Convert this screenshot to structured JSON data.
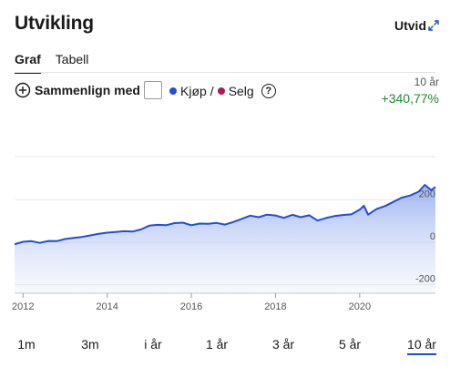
{
  "header": {
    "title": "Utvikling",
    "expand_label": "Utvid"
  },
  "tabs": [
    {
      "label": "Graf",
      "active": true
    },
    {
      "label": "Tabell",
      "active": false
    }
  ],
  "controls": {
    "compare_label": "Sammenlign med",
    "buy_label": "Kjøp",
    "separator": "/",
    "sell_label": "Selg",
    "help_label": "?",
    "buy_color": "#1f4fd6",
    "sell_color": "#b0175e"
  },
  "summary": {
    "period": "10 år",
    "change": "+340,77%",
    "change_color": "#1e8a2d"
  },
  "chart_data": {
    "type": "area",
    "color": "#1f4fd6",
    "x": [
      2011.8,
      2012.0,
      2012.2,
      2012.4,
      2012.6,
      2012.8,
      2013.0,
      2013.2,
      2013.4,
      2013.6,
      2013.8,
      2014.0,
      2014.2,
      2014.4,
      2014.6,
      2014.8,
      2015.0,
      2015.2,
      2015.4,
      2015.6,
      2015.8,
      2016.0,
      2016.2,
      2016.4,
      2016.6,
      2016.8,
      2017.0,
      2017.2,
      2017.4,
      2017.6,
      2017.8,
      2018.0,
      2018.2,
      2018.4,
      2018.6,
      2018.8,
      2019.0,
      2019.2,
      2019.4,
      2019.6,
      2019.8,
      2020.0,
      2020.1,
      2020.2,
      2020.4,
      2020.6,
      2020.8,
      2021.0,
      2021.2,
      2021.4,
      2021.55,
      2021.7,
      2021.8
    ],
    "values": [
      -10,
      2,
      5,
      -3,
      6,
      5,
      15,
      20,
      25,
      32,
      40,
      45,
      48,
      52,
      50,
      60,
      78,
      82,
      80,
      90,
      92,
      80,
      88,
      87,
      91,
      83,
      95,
      110,
      125,
      118,
      130,
      126,
      115,
      129,
      118,
      127,
      102,
      114,
      123,
      128,
      131,
      153,
      172,
      130,
      156,
      170,
      190,
      210,
      220,
      238,
      270,
      245,
      260
    ],
    "yticks": [
      -200,
      0,
      200
    ],
    "xticks": [
      2012,
      2014,
      2016,
      2018,
      2020
    ],
    "xlim": [
      2011.8,
      2021.8
    ],
    "ylim": [
      -240,
      420
    ],
    "grid": true
  },
  "periods": [
    {
      "label": "1m",
      "active": false
    },
    {
      "label": "3m",
      "active": false
    },
    {
      "label": "i år",
      "active": false
    },
    {
      "label": "1 år",
      "active": false
    },
    {
      "label": "3 år",
      "active": false
    },
    {
      "label": "5 år",
      "active": false
    },
    {
      "label": "10 år",
      "active": true
    }
  ]
}
